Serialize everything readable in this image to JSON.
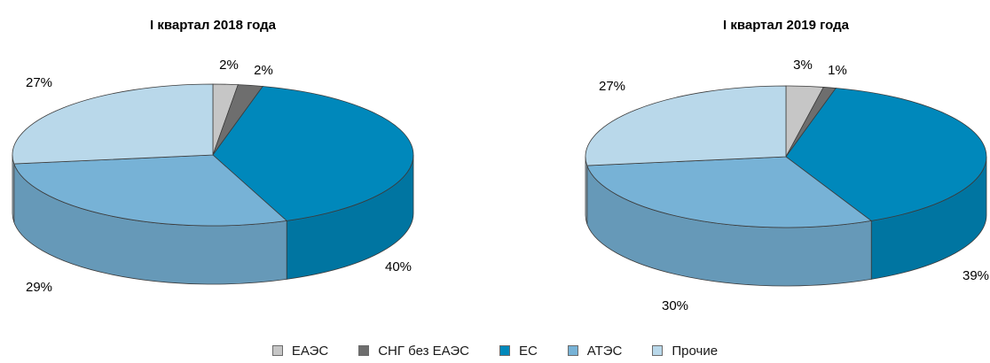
{
  "chart_data": [
    {
      "type": "pie",
      "title": "I квартал 2018 года",
      "categories": [
        "ЕАЭС",
        "СНГ без ЕАЭС",
        "ЕС",
        "АТЭС",
        "Прочие"
      ],
      "values": [
        2,
        2,
        40,
        29,
        27
      ],
      "labels": [
        "2%",
        "2%",
        "40%",
        "29%",
        "27%"
      ]
    },
    {
      "type": "pie",
      "title": "I квартал 2019 года",
      "categories": [
        "ЕАЭС",
        "СНГ без ЕАЭС",
        "ЕС",
        "АТЭС",
        "Прочие"
      ],
      "values": [
        3,
        1,
        39,
        30,
        27
      ],
      "labels": [
        "3%",
        "1%",
        "39%",
        "30%",
        "27%"
      ]
    }
  ],
  "legend": {
    "items": [
      {
        "label": "ЕАЭС",
        "color": "#c6c6c6"
      },
      {
        "label": "СНГ без ЕАЭС",
        "color": "#6e6e6e"
      },
      {
        "label": "ЕС",
        "color": "#0088bb"
      },
      {
        "label": "АТЭС",
        "color": "#77b2d6"
      },
      {
        "label": "Прочие",
        "color": "#b9d8ea"
      }
    ]
  },
  "colors": {
    "ЕАЭС": "#c6c6c6",
    "СНГ без ЕАЭС": "#6e6e6e",
    "ЕС": "#0088bb",
    "АТЭС": "#77b2d6",
    "Прочие": "#b9d8ea"
  }
}
